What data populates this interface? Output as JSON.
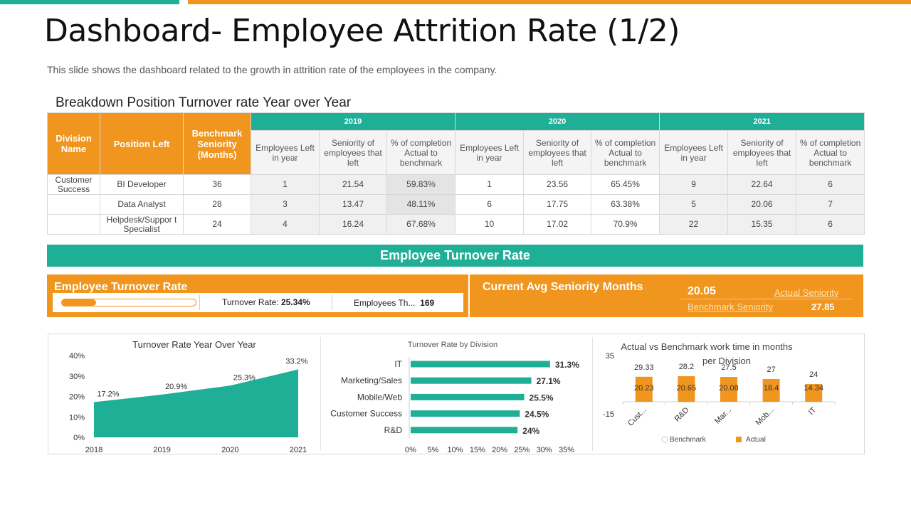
{
  "colors": {
    "teal": "#1fae96",
    "orange": "#f0961e"
  },
  "header": {
    "title": "Dashboard- Employee Attrition Rate (1/2)",
    "subtitle": "This slide shows the dashboard related to the growth in attrition rate of the employees in the company."
  },
  "table": {
    "title": "Breakdown Position Turnover rate Year over Year",
    "col_division": "Division Name",
    "col_position": "Position Left",
    "col_benchmark": "Benchmark Seniority (Months)",
    "years": [
      "2019",
      "2020",
      "2021"
    ],
    "sub_headers": [
      "Employees Left in year",
      "Seniority of employees that left",
      "% of completion Actual to benchmark"
    ],
    "rows": [
      {
        "division": "Customer Success",
        "position": "BI Developer",
        "benchmark": "36",
        "cells": [
          "1",
          "21.54",
          "59.83%",
          "1",
          "23.56",
          "65.45%",
          "9",
          "22.64",
          "6"
        ]
      },
      {
        "division": "",
        "position": "Data Analyst",
        "benchmark": "28",
        "cells": [
          "3",
          "13.47",
          "48.11%",
          "6",
          "17.75",
          "63.38%",
          "5",
          "20.06",
          "7"
        ]
      },
      {
        "division": "",
        "position": "Helpdesk/Suppor t Specialist",
        "benchmark": "24",
        "cells": [
          "4",
          "16.24",
          "67.68%",
          "10",
          "17.02",
          "70.9%",
          "22",
          "15.35",
          "6"
        ]
      }
    ]
  },
  "band": {
    "title": "Employee Turnover Rate"
  },
  "turnover_panel": {
    "label": "Employee Turnover Rate",
    "progress_fraction": 0.2534,
    "rate_label": "Turnover Rate:",
    "rate_value": "25.34%",
    "employees_label": "Employees Th...",
    "employees_value": "169"
  },
  "seniority_panel": {
    "label": "Current Avg Seniority Months",
    "actual_value": "20.05",
    "actual_label": "Actual Seniority",
    "benchmark_label": "Benchmark Seniority",
    "benchmark_value": "27.85"
  },
  "chart_data": [
    {
      "type": "area",
      "title": "Turnover  Rate Year Over Year",
      "x": [
        "2018",
        "2019",
        "2020",
        "2021"
      ],
      "values": [
        17.2,
        20.9,
        25.3,
        33.2
      ],
      "value_labels": [
        "17.2%",
        "20.9%",
        "25.3%",
        "33.2%"
      ],
      "ylim": [
        0,
        40
      ],
      "yticks": [
        "0%",
        "10%",
        "20%",
        "30%",
        "40%"
      ],
      "color": "#1fae96"
    },
    {
      "type": "bar",
      "orientation": "horizontal",
      "title": "Turnover Rate by Division",
      "categories": [
        "IT",
        "Marketing/Sales",
        "Mobile/Web",
        "Customer Success",
        "R&D"
      ],
      "values": [
        31.3,
        27.1,
        25.5,
        24.5,
        24
      ],
      "value_labels": [
        "31.3%",
        "27.1%",
        "25.5%",
        "24.5%",
        "24%"
      ],
      "xlim": [
        0,
        35
      ],
      "xticks": [
        "0%",
        "5%",
        "10%",
        "15%",
        "20%",
        "25%",
        "30%",
        "35%"
      ],
      "color": "#1fae96"
    },
    {
      "type": "bar",
      "title": "Actual vs Benchmark work time in months per Division",
      "categories": [
        "Cust...",
        "R&D",
        "Mar...",
        "Mob...",
        "IT"
      ],
      "series": [
        {
          "name": "Benchmark",
          "values": [
            29.33,
            28.2,
            27.5,
            27,
            24
          ]
        },
        {
          "name": "Actual",
          "values": [
            20.23,
            20.65,
            20.08,
            18.4,
            14.34
          ]
        }
      ],
      "ylim": [
        -15,
        35
      ],
      "yticks": [
        "35",
        "-15"
      ],
      "legend": [
        "Benchmark",
        "Actual"
      ],
      "color": "#f0961e"
    }
  ]
}
